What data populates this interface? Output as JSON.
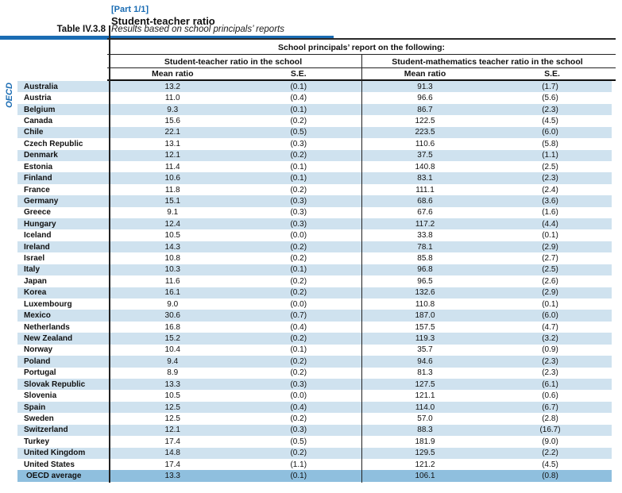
{
  "page": {
    "part_label": "[Part 1/1]",
    "title": "Student-teacher ratio",
    "table_label": "Table IV.3.8",
    "subtitle": "Results based on school principals’ reports",
    "side_label": "OECD"
  },
  "table": {
    "spanner": "School principals’ report on the following:",
    "groups": [
      {
        "label": "Student-teacher ratio in the school"
      },
      {
        "label": "Student-mathematics teacher ratio in the school"
      }
    ],
    "col_headers": [
      "Mean ratio",
      "S.E.",
      "Mean ratio",
      "S.E."
    ],
    "rows": [
      [
        "Australia",
        "13.2",
        "(0.1)",
        "91.3",
        "(1.7)"
      ],
      [
        "Austria",
        "11.0",
        "(0.4)",
        "96.6",
        "(5.6)"
      ],
      [
        "Belgium",
        "9.3",
        "(0.1)",
        "86.7",
        "(2.3)"
      ],
      [
        "Canada",
        "15.6",
        "(0.2)",
        "122.5",
        "(4.5)"
      ],
      [
        "Chile",
        "22.1",
        "(0.5)",
        "223.5",
        "(6.0)"
      ],
      [
        "Czech Republic",
        "13.1",
        "(0.3)",
        "110.6",
        "(5.8)"
      ],
      [
        "Denmark",
        "12.1",
        "(0.2)",
        "37.5",
        "(1.1)"
      ],
      [
        "Estonia",
        "11.4",
        "(0.1)",
        "140.8",
        "(2.5)"
      ],
      [
        "Finland",
        "10.6",
        "(0.1)",
        "83.1",
        "(2.3)"
      ],
      [
        "France",
        "11.8",
        "(0.2)",
        "111.1",
        "(2.4)"
      ],
      [
        "Germany",
        "15.1",
        "(0.3)",
        "68.6",
        "(3.6)"
      ],
      [
        "Greece",
        "9.1",
        "(0.3)",
        "67.6",
        "(1.6)"
      ],
      [
        "Hungary",
        "12.4",
        "(0.3)",
        "117.2",
        "(4.4)"
      ],
      [
        "Iceland",
        "10.5",
        "(0.0)",
        "33.8",
        "(0.1)"
      ],
      [
        "Ireland",
        "14.3",
        "(0.2)",
        "78.1",
        "(2.9)"
      ],
      [
        "Israel",
        "10.8",
        "(0.2)",
        "85.8",
        "(2.7)"
      ],
      [
        "Italy",
        "10.3",
        "(0.1)",
        "96.8",
        "(2.5)"
      ],
      [
        "Japan",
        "11.6",
        "(0.2)",
        "96.5",
        "(2.6)"
      ],
      [
        "Korea",
        "16.1",
        "(0.2)",
        "132.6",
        "(2.9)"
      ],
      [
        "Luxembourg",
        "9.0",
        "(0.0)",
        "110.8",
        "(0.1)"
      ],
      [
        "Mexico",
        "30.6",
        "(0.7)",
        "187.0",
        "(6.0)"
      ],
      [
        "Netherlands",
        "16.8",
        "(0.4)",
        "157.5",
        "(4.7)"
      ],
      [
        "New Zealand",
        "15.2",
        "(0.2)",
        "119.3",
        "(3.2)"
      ],
      [
        "Norway",
        "10.4",
        "(0.1)",
        "35.7",
        "(0.9)"
      ],
      [
        "Poland",
        "9.4",
        "(0.2)",
        "94.6",
        "(2.3)"
      ],
      [
        "Portugal",
        "8.9",
        "(0.2)",
        "81.3",
        "(2.3)"
      ],
      [
        "Slovak Republic",
        "13.3",
        "(0.3)",
        "127.5",
        "(6.1)"
      ],
      [
        "Slovenia",
        "10.5",
        "(0.0)",
        "121.1",
        "(0.6)"
      ],
      [
        "Spain",
        "12.5",
        "(0.4)",
        "114.0",
        "(6.7)"
      ],
      [
        "Sweden",
        "12.5",
        "(0.2)",
        "57.0",
        "(2.8)"
      ],
      [
        "Switzerland",
        "12.1",
        "(0.3)",
        "88.3",
        "(16.7)"
      ],
      [
        "Turkey",
        "17.4",
        "(0.5)",
        "181.9",
        "(9.0)"
      ],
      [
        "United Kingdom",
        "14.8",
        "(0.2)",
        "129.5",
        "(2.2)"
      ],
      [
        "United States",
        "17.4",
        "(1.1)",
        "121.2",
        "(4.5)"
      ]
    ],
    "oecd_average": [
      "OECD average",
      "13.3",
      "(0.1)",
      "106.1",
      "(0.8)"
    ]
  },
  "colors": {
    "accent_blue": "#1a6cb3",
    "row_stripe": "#cfe2ef",
    "average_row": "#8fbfde"
  }
}
